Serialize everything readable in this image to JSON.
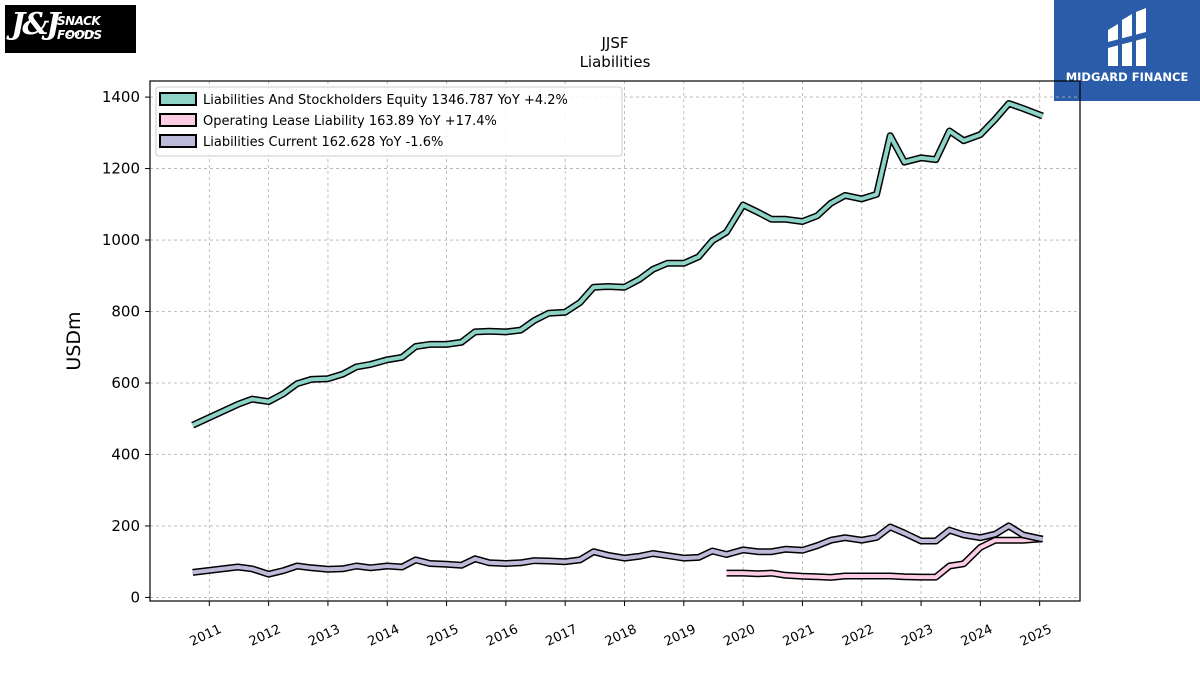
{
  "logos": {
    "company_monogram": "J&J",
    "company_wordmark": "SNACK FOODS",
    "company_sub": "CORP",
    "brand_name": "MIDGARD FINANCE"
  },
  "chart_data": {
    "type": "line",
    "title": "JJSF",
    "subtitle": "Liabilities",
    "xlabel": "",
    "ylabel": "USDm",
    "ylim": [
      -10,
      1445
    ],
    "xlim": [
      2010.0,
      2025.68
    ],
    "grid": true,
    "legend_position": "top-left",
    "yticks": [
      0,
      200,
      400,
      600,
      800,
      1000,
      1200,
      1400
    ],
    "xticks": [
      {
        "value": 2011,
        "label": "2011"
      },
      {
        "value": 2012,
        "label": "2012"
      },
      {
        "value": 2013,
        "label": "2013"
      },
      {
        "value": 2014,
        "label": "2014"
      },
      {
        "value": 2015,
        "label": "2015"
      },
      {
        "value": 2016,
        "label": "2016"
      },
      {
        "value": 2017,
        "label": "2017"
      },
      {
        "value": 2018,
        "label": "2018"
      },
      {
        "value": 2019,
        "label": "2019"
      },
      {
        "value": 2020,
        "label": "2020"
      },
      {
        "value": 2021,
        "label": "2021"
      },
      {
        "value": 2022,
        "label": "2022"
      },
      {
        "value": 2023,
        "label": "2023"
      },
      {
        "value": 2024,
        "label": "2024"
      },
      {
        "value": 2025,
        "label": "2025"
      }
    ],
    "series": [
      {
        "name": "Liabilities And Stockholders Equity",
        "legend_label": "Liabilities And Stockholders Equity  1346.787 YoY +4.2%",
        "color": "#8dd3c7",
        "points": [
          [
            2010.72,
            482
          ],
          [
            2011.48,
            540
          ],
          [
            2011.72,
            555
          ],
          [
            2012.0,
            548
          ],
          [
            2012.25,
            570
          ],
          [
            2012.48,
            598
          ],
          [
            2012.72,
            610
          ],
          [
            2013.0,
            612
          ],
          [
            2013.25,
            625
          ],
          [
            2013.48,
            645
          ],
          [
            2013.72,
            652
          ],
          [
            2014.0,
            665
          ],
          [
            2014.25,
            672
          ],
          [
            2014.48,
            702
          ],
          [
            2014.72,
            708
          ],
          [
            2015.0,
            708
          ],
          [
            2015.25,
            714
          ],
          [
            2015.48,
            743
          ],
          [
            2015.72,
            745
          ],
          [
            2016.0,
            743
          ],
          [
            2016.25,
            748
          ],
          [
            2016.48,
            775
          ],
          [
            2016.72,
            795
          ],
          [
            2017.0,
            798
          ],
          [
            2017.25,
            825
          ],
          [
            2017.48,
            868
          ],
          [
            2017.72,
            870
          ],
          [
            2018.0,
            868
          ],
          [
            2018.25,
            890
          ],
          [
            2018.48,
            918
          ],
          [
            2018.72,
            935
          ],
          [
            2019.0,
            935
          ],
          [
            2019.25,
            953
          ],
          [
            2019.48,
            998
          ],
          [
            2019.72,
            1022
          ],
          [
            2020.0,
            1098
          ],
          [
            2020.25,
            1078
          ],
          [
            2020.48,
            1058
          ],
          [
            2020.72,
            1058
          ],
          [
            2021.0,
            1052
          ],
          [
            2021.25,
            1068
          ],
          [
            2021.48,
            1103
          ],
          [
            2021.72,
            1125
          ],
          [
            2022.0,
            1115
          ],
          [
            2022.25,
            1128
          ],
          [
            2022.48,
            1292
          ],
          [
            2022.72,
            1218
          ],
          [
            2023.0,
            1230
          ],
          [
            2023.25,
            1225
          ],
          [
            2023.48,
            1305
          ],
          [
            2023.72,
            1278
          ],
          [
            2024.0,
            1295
          ],
          [
            2024.25,
            1338
          ],
          [
            2024.48,
            1382
          ],
          [
            2024.72,
            1368
          ],
          [
            2025.05,
            1347
          ]
        ]
      },
      {
        "name": "Operating Lease Liability",
        "legend_label": "Operating Lease Liability  163.89 YoY +17.4%",
        "color": "#fccde5",
        "points": [
          [
            2019.72,
            68
          ],
          [
            2020.0,
            68
          ],
          [
            2020.25,
            66
          ],
          [
            2020.48,
            68
          ],
          [
            2020.72,
            62
          ],
          [
            2021.0,
            59
          ],
          [
            2021.25,
            58
          ],
          [
            2021.48,
            56
          ],
          [
            2021.72,
            60
          ],
          [
            2022.0,
            60
          ],
          [
            2022.25,
            60
          ],
          [
            2022.48,
            60
          ],
          [
            2022.72,
            58
          ],
          [
            2023.0,
            57
          ],
          [
            2023.25,
            57
          ],
          [
            2023.48,
            88
          ],
          [
            2023.72,
            94
          ],
          [
            2024.0,
            140
          ],
          [
            2024.25,
            160
          ],
          [
            2024.48,
            160
          ],
          [
            2024.72,
            160
          ],
          [
            2025.05,
            164
          ]
        ]
      },
      {
        "name": "Liabilities Current",
        "legend_label": "Liabilities Current  162.628 YoY -1.6%",
        "color": "#bebada",
        "points": [
          [
            2010.72,
            70
          ],
          [
            2011.48,
            85
          ],
          [
            2011.72,
            80
          ],
          [
            2012.0,
            65
          ],
          [
            2012.25,
            75
          ],
          [
            2012.48,
            88
          ],
          [
            2012.72,
            83
          ],
          [
            2013.0,
            79
          ],
          [
            2013.25,
            80
          ],
          [
            2013.48,
            88
          ],
          [
            2013.72,
            83
          ],
          [
            2014.0,
            88
          ],
          [
            2014.25,
            85
          ],
          [
            2014.48,
            105
          ],
          [
            2014.72,
            95
          ],
          [
            2015.0,
            93
          ],
          [
            2015.25,
            90
          ],
          [
            2015.48,
            108
          ],
          [
            2015.72,
            97
          ],
          [
            2016.0,
            95
          ],
          [
            2016.25,
            97
          ],
          [
            2016.48,
            103
          ],
          [
            2016.72,
            102
          ],
          [
            2017.0,
            100
          ],
          [
            2017.25,
            105
          ],
          [
            2017.48,
            128
          ],
          [
            2017.72,
            118
          ],
          [
            2018.0,
            110
          ],
          [
            2018.25,
            115
          ],
          [
            2018.48,
            123
          ],
          [
            2018.72,
            117
          ],
          [
            2019.0,
            110
          ],
          [
            2019.25,
            112
          ],
          [
            2019.48,
            130
          ],
          [
            2019.72,
            120
          ],
          [
            2020.0,
            133
          ],
          [
            2020.25,
            128
          ],
          [
            2020.48,
            128
          ],
          [
            2020.72,
            135
          ],
          [
            2021.0,
            132
          ],
          [
            2021.25,
            145
          ],
          [
            2021.48,
            160
          ],
          [
            2021.72,
            167
          ],
          [
            2022.0,
            160
          ],
          [
            2022.25,
            168
          ],
          [
            2022.48,
            197
          ],
          [
            2022.72,
            180
          ],
          [
            2023.0,
            158
          ],
          [
            2023.25,
            158
          ],
          [
            2023.48,
            188
          ],
          [
            2023.72,
            175
          ],
          [
            2024.0,
            167
          ],
          [
            2024.25,
            177
          ],
          [
            2024.48,
            200
          ],
          [
            2024.72,
            175
          ],
          [
            2025.05,
            163
          ]
        ]
      }
    ]
  }
}
